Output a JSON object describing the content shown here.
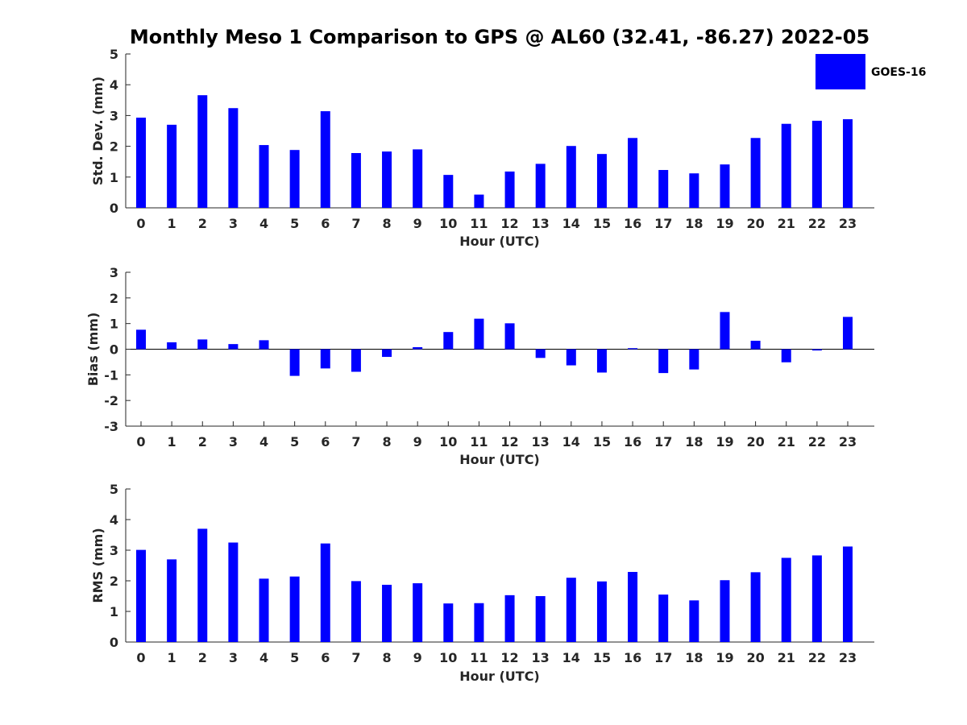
{
  "figure": {
    "title": "Monthly Meso 1 Comparison to GPS @ AL60 (32.41, -86.27) 2022-05"
  },
  "legend": {
    "label": "GOES-16",
    "color": "#0000ff",
    "placement": "top-right"
  },
  "chart_data": [
    {
      "type": "bar",
      "title": "",
      "xlabel": "Hour (UTC)",
      "ylabel": "Std. Dev. (mm)",
      "ylim": [
        0,
        5
      ],
      "yticks": [
        0,
        1,
        2,
        3,
        4,
        5
      ],
      "categories": [
        "0",
        "1",
        "2",
        "3",
        "4",
        "5",
        "6",
        "7",
        "8",
        "9",
        "10",
        "11",
        "12",
        "13",
        "14",
        "15",
        "16",
        "17",
        "18",
        "19",
        "20",
        "21",
        "22",
        "23"
      ],
      "series": [
        {
          "name": "GOES-16",
          "color": "#0000ff",
          "values": [
            2.93,
            2.7,
            3.66,
            3.24,
            2.04,
            1.88,
            3.14,
            1.78,
            1.83,
            1.9,
            1.07,
            0.43,
            1.18,
            1.43,
            2.01,
            1.75,
            2.27,
            1.23,
            1.12,
            1.41,
            2.27,
            2.73,
            2.83,
            2.88
          ]
        }
      ]
    },
    {
      "type": "bar",
      "title": "",
      "xlabel": "Hour (UTC)",
      "ylabel": "Bias (mm)",
      "ylim": [
        -3,
        3
      ],
      "yticks": [
        -3,
        -2,
        -1,
        0,
        1,
        2,
        3
      ],
      "categories": [
        "0",
        "1",
        "2",
        "3",
        "4",
        "5",
        "6",
        "7",
        "8",
        "9",
        "10",
        "11",
        "12",
        "13",
        "14",
        "15",
        "16",
        "17",
        "18",
        "19",
        "20",
        "21",
        "22",
        "23"
      ],
      "series": [
        {
          "name": "GOES-16",
          "color": "#0000ff",
          "values": [
            0.76,
            0.27,
            0.38,
            0.2,
            0.35,
            -1.04,
            -0.75,
            -0.88,
            -0.3,
            0.08,
            0.67,
            1.19,
            1.01,
            -0.34,
            -0.63,
            -0.91,
            0.04,
            -0.93,
            -0.79,
            1.45,
            0.33,
            -0.51,
            -0.05,
            1.26
          ]
        }
      ]
    },
    {
      "type": "bar",
      "title": "",
      "xlabel": "Hour (UTC)",
      "ylabel": "RMS (mm)",
      "ylim": [
        0,
        5
      ],
      "yticks": [
        0,
        1,
        2,
        3,
        4,
        5
      ],
      "categories": [
        "0",
        "1",
        "2",
        "3",
        "4",
        "5",
        "6",
        "7",
        "8",
        "9",
        "10",
        "11",
        "12",
        "13",
        "14",
        "15",
        "16",
        "17",
        "18",
        "19",
        "20",
        "21",
        "22",
        "23"
      ],
      "series": [
        {
          "name": "GOES-16",
          "color": "#0000ff",
          "values": [
            3.01,
            2.7,
            3.7,
            3.25,
            2.07,
            2.14,
            3.22,
            1.99,
            1.87,
            1.92,
            1.26,
            1.27,
            1.53,
            1.5,
            2.1,
            1.98,
            2.29,
            1.55,
            1.36,
            2.02,
            2.28,
            2.75,
            2.83,
            3.12
          ]
        }
      ]
    }
  ]
}
